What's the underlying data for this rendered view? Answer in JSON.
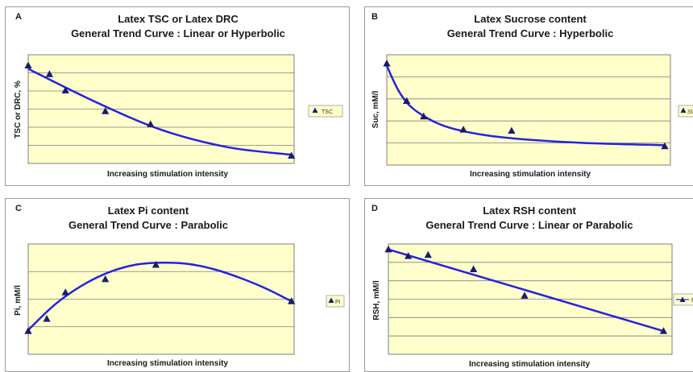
{
  "style": {
    "plot_fill": "#ffffcc",
    "plot_border": "#7f7f7f",
    "grid": "#7f7f7f",
    "line": "#2323e0",
    "marker": "#1b1b6b",
    "legend_fill": "#ffffcc"
  },
  "chart_data": [
    {
      "letter": "A",
      "type": "line",
      "title": "Latex TSC or Latex DRC",
      "subtitle": "General Trend Curve : Linear or Hyperbolic",
      "xlabel": "Increasing stimulation intensity",
      "ylabel": "TSC or DRC, %",
      "legend": [
        "TSC"
      ],
      "series": [
        {
          "name": "TSC",
          "marker": "triangle"
        }
      ],
      "points": [
        [
          0,
          0.9
        ],
        [
          0.08,
          0.82
        ],
        [
          0.14,
          0.67
        ],
        [
          0.29,
          0.48
        ],
        [
          0.46,
          0.36
        ],
        [
          0.99,
          0.07
        ]
      ],
      "trend": [
        [
          0,
          0.87
        ],
        [
          0.25,
          0.57
        ],
        [
          0.5,
          0.31
        ],
        [
          0.75,
          0.15
        ],
        [
          0.99,
          0.08
        ]
      ],
      "grid": "horizontal",
      "ylim": [
        0,
        1
      ]
    },
    {
      "letter": "B",
      "type": "line",
      "title": "Latex Sucrose content",
      "subtitle": "General Trend Curve : Hyperbolic",
      "xlabel": "Increasing stimulation intensity",
      "ylabel": "Suc, mM/l",
      "legend": [
        "SU"
      ],
      "series": [
        {
          "name": "SU",
          "marker": "triangle"
        }
      ],
      "points": [
        [
          0,
          0.92
        ],
        [
          0.07,
          0.58
        ],
        [
          0.13,
          0.44
        ],
        [
          0.27,
          0.32
        ],
        [
          0.44,
          0.31
        ],
        [
          0.98,
          0.17
        ]
      ],
      "trend": [
        [
          0,
          0.9
        ],
        [
          0.04,
          0.68
        ],
        [
          0.08,
          0.54
        ],
        [
          0.14,
          0.43
        ],
        [
          0.22,
          0.34
        ],
        [
          0.35,
          0.27
        ],
        [
          0.5,
          0.23
        ],
        [
          0.7,
          0.2
        ],
        [
          0.98,
          0.18
        ]
      ],
      "grid": "horizontal",
      "ylim": [
        0,
        1
      ]
    },
    {
      "letter": "C",
      "type": "line",
      "title": "Latex Pi content",
      "subtitle": "General Trend Curve : Parabolic",
      "xlabel": "Increasing stimulation intensity",
      "ylabel": "Pi, mM/l",
      "legend": [
        "Pi"
      ],
      "series": [
        {
          "name": "Pi",
          "marker": "triangle"
        }
      ],
      "points": [
        [
          0,
          0.21
        ],
        [
          0.07,
          0.32
        ],
        [
          0.14,
          0.56
        ],
        [
          0.29,
          0.68
        ],
        [
          0.48,
          0.81
        ],
        [
          0.99,
          0.48
        ]
      ],
      "trend": [
        [
          0,
          0.22
        ],
        [
          0.1,
          0.45
        ],
        [
          0.2,
          0.62
        ],
        [
          0.3,
          0.74
        ],
        [
          0.4,
          0.81
        ],
        [
          0.5,
          0.83
        ],
        [
          0.6,
          0.82
        ],
        [
          0.7,
          0.77
        ],
        [
          0.8,
          0.69
        ],
        [
          0.9,
          0.59
        ],
        [
          0.99,
          0.48
        ]
      ],
      "grid": "horizontal",
      "ylim": [
        0,
        1
      ]
    },
    {
      "letter": "D",
      "type": "line",
      "title": "Latex RSH content",
      "subtitle": "General Trend Curve : Linear or Parabolic",
      "xlabel": "Increasing stimulation intensity",
      "ylabel": "RSH, mM/l",
      "legend": [
        "RS"
      ],
      "series": [
        {
          "name": "RS",
          "marker": "triangle"
        }
      ],
      "points": [
        [
          0,
          0.95
        ],
        [
          0.07,
          0.89
        ],
        [
          0.14,
          0.9
        ],
        [
          0.3,
          0.77
        ],
        [
          0.48,
          0.53
        ],
        [
          0.97,
          0.21
        ]
      ],
      "trend": [
        [
          0,
          0.95
        ],
        [
          0.97,
          0.21
        ]
      ],
      "grid": "horizontal",
      "ylim": [
        0,
        1
      ]
    }
  ]
}
